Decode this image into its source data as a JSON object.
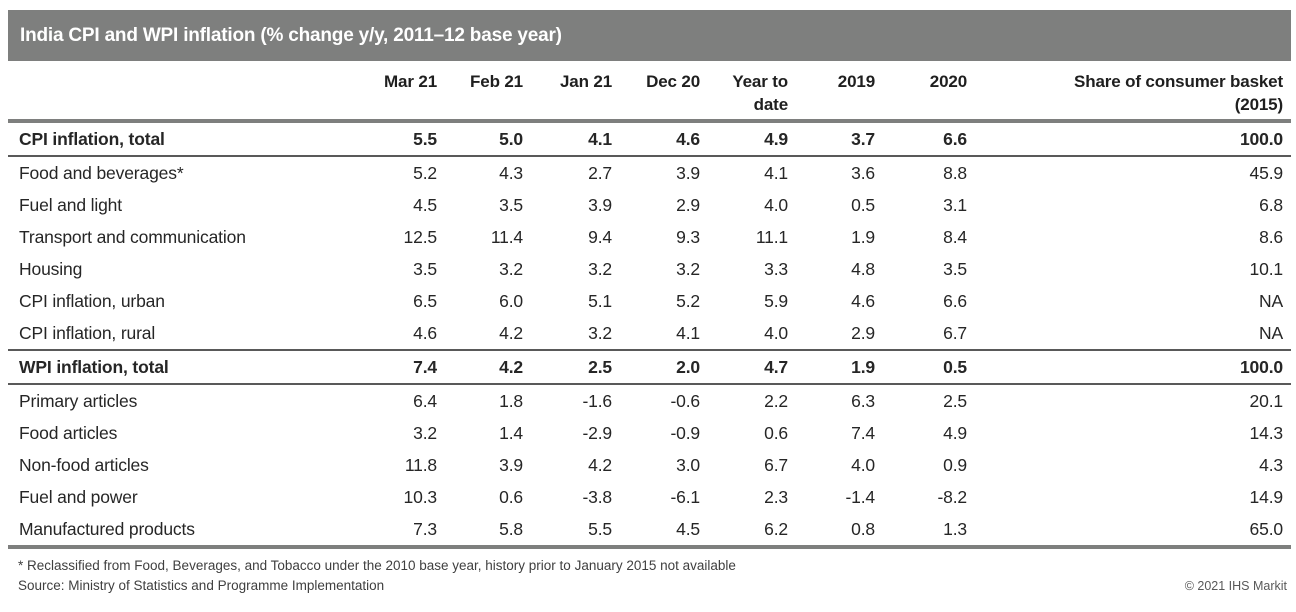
{
  "title": "India CPI and WPI inflation (% change y/y, 2011–12 base year)",
  "colors": {
    "banner_gray": "#7e7f7e",
    "rule_thick": "#7e7f7e",
    "rule_thin": "#595959",
    "text_dark": "#262626",
    "title_text": "#ffffff"
  },
  "chart_data": {
    "type": "table",
    "title": "India CPI and WPI inflation (% change y/y, 2011–12 base year)",
    "columns": [
      {
        "label": "",
        "lines": [
          ""
        ]
      },
      {
        "label": "Mar 21",
        "lines": [
          "Mar 21"
        ]
      },
      {
        "label": "Feb 21",
        "lines": [
          "Feb 21"
        ]
      },
      {
        "label": "Jan 21",
        "lines": [
          "Jan 21"
        ]
      },
      {
        "label": "Dec 20",
        "lines": [
          "Dec 20"
        ]
      },
      {
        "label": "Year to date",
        "lines": [
          "Year to",
          "date"
        ]
      },
      {
        "label": "2019",
        "lines": [
          "2019"
        ]
      },
      {
        "label": "2020",
        "lines": [
          "2020"
        ]
      },
      {
        "label": "Share of consumer basket (2015)",
        "lines": [
          "Share of consumer basket",
          "(2015)"
        ]
      }
    ],
    "rows": [
      {
        "label": "CPI inflation, total",
        "bold": true,
        "values": [
          "5.5",
          "5.0",
          "4.1",
          "4.6",
          "4.9",
          "3.7",
          "6.6",
          "100.0"
        ]
      },
      {
        "label": "Food and beverages*",
        "bold": false,
        "values": [
          "5.2",
          "4.3",
          "2.7",
          "3.9",
          "4.1",
          "3.6",
          "8.8",
          "45.9"
        ]
      },
      {
        "label": "Fuel and light",
        "bold": false,
        "values": [
          "4.5",
          "3.5",
          "3.9",
          "2.9",
          "4.0",
          "0.5",
          "3.1",
          "6.8"
        ]
      },
      {
        "label": "Transport and communication",
        "bold": false,
        "values": [
          "12.5",
          "11.4",
          "9.4",
          "9.3",
          "11.1",
          "1.9",
          "8.4",
          "8.6"
        ]
      },
      {
        "label": "Housing",
        "bold": false,
        "values": [
          "3.5",
          "3.2",
          "3.2",
          "3.2",
          "3.3",
          "4.8",
          "3.5",
          "10.1"
        ]
      },
      {
        "label": "CPI inflation, urban",
        "bold": false,
        "values": [
          "6.5",
          "6.0",
          "5.1",
          "5.2",
          "5.9",
          "4.6",
          "6.6",
          "NA"
        ]
      },
      {
        "label": "CPI inflation, rural",
        "bold": false,
        "values": [
          "4.6",
          "4.2",
          "3.2",
          "4.1",
          "4.0",
          "2.9",
          "6.7",
          "NA"
        ]
      },
      {
        "label": "WPI inflation, total",
        "bold": true,
        "values": [
          "7.4",
          "4.2",
          "2.5",
          "2.0",
          "4.7",
          "1.9",
          "0.5",
          "100.0"
        ]
      },
      {
        "label": "Primary articles",
        "bold": false,
        "values": [
          "6.4",
          "1.8",
          "-1.6",
          "-0.6",
          "2.2",
          "6.3",
          "2.5",
          "20.1"
        ]
      },
      {
        "label": "Food articles",
        "bold": false,
        "values": [
          "3.2",
          "1.4",
          "-2.9",
          "-0.9",
          "0.6",
          "7.4",
          "4.9",
          "14.3"
        ]
      },
      {
        "label": "Non-food articles",
        "bold": false,
        "values": [
          "11.8",
          "3.9",
          "4.2",
          "3.0",
          "6.7",
          "4.0",
          "0.9",
          "4.3"
        ]
      },
      {
        "label": "Fuel and power",
        "bold": false,
        "values": [
          "10.3",
          "0.6",
          "-3.8",
          "-6.1",
          "2.3",
          "-1.4",
          "-8.2",
          "14.9"
        ]
      },
      {
        "label": "Manufactured products",
        "bold": false,
        "values": [
          "7.3",
          "5.8",
          "5.5",
          "4.5",
          "6.2",
          "0.8",
          "1.3",
          "65.0"
        ]
      }
    ]
  },
  "footer": {
    "footnote": "* Reclassified from Food, Beverages, and Tobacco under the 2010 base year, history prior to January 2015 not available",
    "source": "Source: Ministry of Statistics and Programme Implementation",
    "copyright": "© 2021 IHS Markit"
  }
}
